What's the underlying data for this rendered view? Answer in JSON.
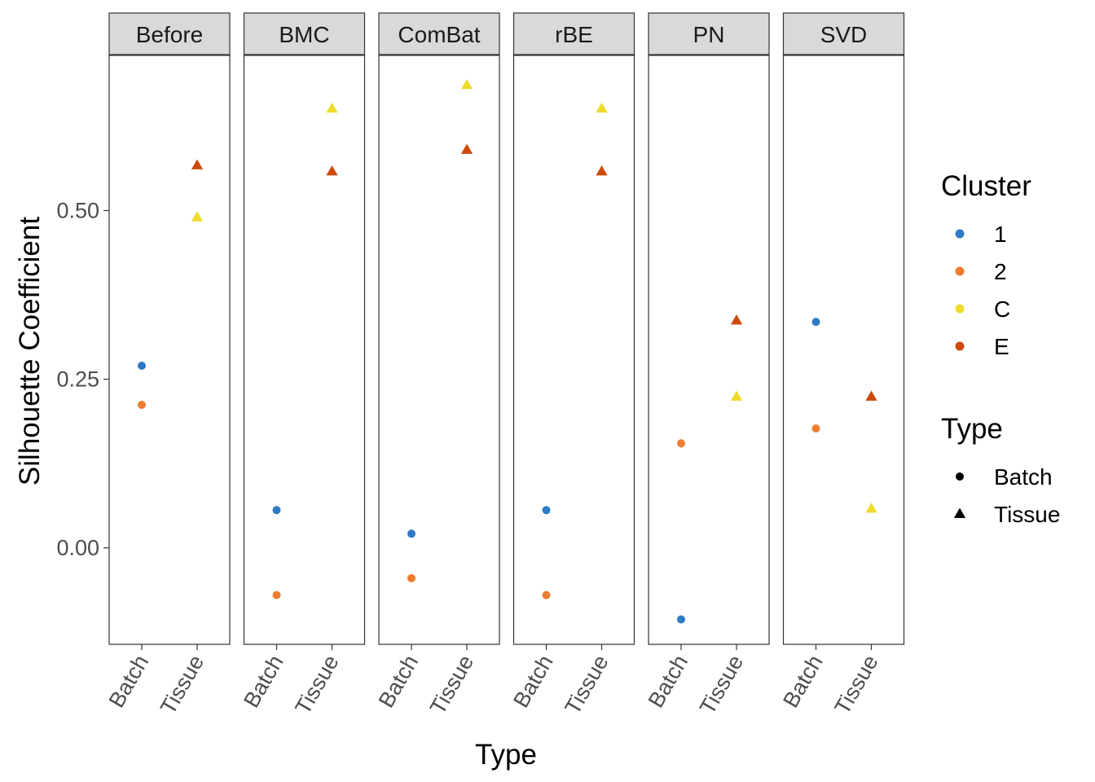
{
  "chart_data": {
    "type": "scatter",
    "panels": [
      "Before",
      "BMC",
      "ComBat",
      "rBE",
      "PN",
      "SVD"
    ],
    "categories": [
      "Batch",
      "Tissue"
    ],
    "xlabel": "Type",
    "ylabel": "Silhouette Coefficient",
    "ylim": [
      -0.143,
      0.73
    ],
    "yticks": [
      "0.00",
      "0.25",
      "0.50"
    ],
    "grid": false,
    "legend_position": "right",
    "clusters": [
      {
        "name": "1",
        "color": "#2e7ac4"
      },
      {
        "name": "2",
        "color": "#ee7d2f"
      },
      {
        "name": "C",
        "color": "#eedb2c"
      },
      {
        "name": "E",
        "color": "#cd4a0a"
      }
    ],
    "types": [
      {
        "name": "Batch",
        "shape": "circle"
      },
      {
        "name": "Tissue",
        "shape": "triangle"
      }
    ],
    "points": [
      {
        "panel": "Before",
        "type": "Batch",
        "cluster": "1",
        "y": 0.27
      },
      {
        "panel": "Before",
        "type": "Batch",
        "cluster": "2",
        "y": 0.212
      },
      {
        "panel": "Before",
        "type": "Tissue",
        "cluster": "E",
        "y": 0.567
      },
      {
        "panel": "Before",
        "type": "Tissue",
        "cluster": "C",
        "y": 0.49
      },
      {
        "panel": "BMC",
        "type": "Batch",
        "cluster": "1",
        "y": 0.056
      },
      {
        "panel": "BMC",
        "type": "Batch",
        "cluster": "2",
        "y": -0.07
      },
      {
        "panel": "BMC",
        "type": "Tissue",
        "cluster": "C",
        "y": 0.651
      },
      {
        "panel": "BMC",
        "type": "Tissue",
        "cluster": "E",
        "y": 0.558
      },
      {
        "panel": "ComBat",
        "type": "Batch",
        "cluster": "1",
        "y": 0.021
      },
      {
        "panel": "ComBat",
        "type": "Batch",
        "cluster": "2",
        "y": -0.045
      },
      {
        "panel": "ComBat",
        "type": "Tissue",
        "cluster": "C",
        "y": 0.686
      },
      {
        "panel": "ComBat",
        "type": "Tissue",
        "cluster": "E",
        "y": 0.59
      },
      {
        "panel": "rBE",
        "type": "Batch",
        "cluster": "1",
        "y": 0.056
      },
      {
        "panel": "rBE",
        "type": "Batch",
        "cluster": "2",
        "y": -0.07
      },
      {
        "panel": "rBE",
        "type": "Tissue",
        "cluster": "C",
        "y": 0.651
      },
      {
        "panel": "rBE",
        "type": "Tissue",
        "cluster": "E",
        "y": 0.558
      },
      {
        "panel": "PN",
        "type": "Batch",
        "cluster": "2",
        "y": 0.155
      },
      {
        "panel": "PN",
        "type": "Batch",
        "cluster": "1",
        "y": -0.106
      },
      {
        "panel": "PN",
        "type": "Tissue",
        "cluster": "E",
        "y": 0.337
      },
      {
        "panel": "PN",
        "type": "Tissue",
        "cluster": "C",
        "y": 0.224
      },
      {
        "panel": "SVD",
        "type": "Batch",
        "cluster": "1",
        "y": 0.335
      },
      {
        "panel": "SVD",
        "type": "Batch",
        "cluster": "2",
        "y": 0.177
      },
      {
        "panel": "SVD",
        "type": "Tissue",
        "cluster": "E",
        "y": 0.224
      },
      {
        "panel": "SVD",
        "type": "Tissue",
        "cluster": "C",
        "y": 0.058
      }
    ]
  },
  "legend": {
    "cluster_title": "Cluster",
    "type_title": "Type"
  }
}
